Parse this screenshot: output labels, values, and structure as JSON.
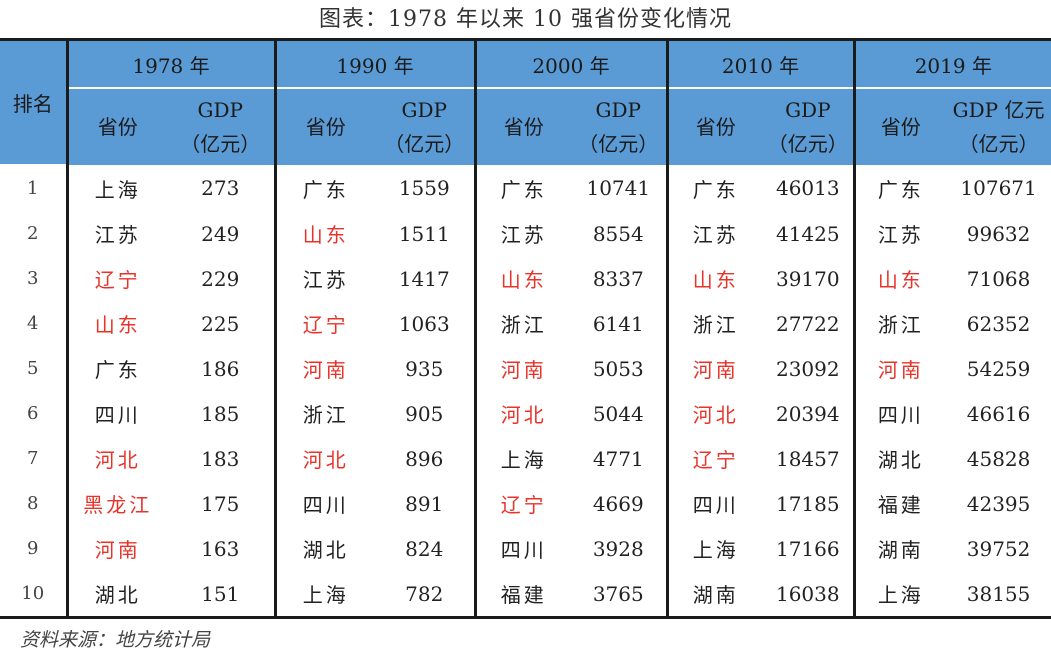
{
  "title": "图表：1978 年以来 10 强省份变化情况",
  "source": "资料来源：地方统计局",
  "header": {
    "rank_label": "排名",
    "years": [
      "1978 年",
      "1990 年",
      "2000 年",
      "2010 年",
      "2019 年"
    ],
    "province_label": "省份",
    "gdp_labels": [
      {
        "line1": "GDP",
        "line2": "（亿元）"
      },
      {
        "line1": "GDP",
        "line2": "（亿元）"
      },
      {
        "line1": "GDP",
        "line2": "（亿元）"
      },
      {
        "line1": "GDP",
        "line2": "（亿元）"
      },
      {
        "line1": "GDP 亿元",
        "line2": "（亿元）"
      }
    ]
  },
  "highlight_color": "#e8332a",
  "rows": [
    {
      "rank": "1",
      "cells": [
        {
          "province": "上海",
          "gdp": "273",
          "red": false
        },
        {
          "province": "广东",
          "gdp": "1559",
          "red": false
        },
        {
          "province": "广东",
          "gdp": "10741",
          "red": false
        },
        {
          "province": "广东",
          "gdp": "46013",
          "red": false
        },
        {
          "province": "广东",
          "gdp": "107671",
          "red": false
        }
      ]
    },
    {
      "rank": "2",
      "cells": [
        {
          "province": "江苏",
          "gdp": "249",
          "red": false
        },
        {
          "province": "山东",
          "gdp": "1511",
          "red": true
        },
        {
          "province": "江苏",
          "gdp": "8554",
          "red": false
        },
        {
          "province": "江苏",
          "gdp": "41425",
          "red": false
        },
        {
          "province": "江苏",
          "gdp": "99632",
          "red": false
        }
      ]
    },
    {
      "rank": "3",
      "cells": [
        {
          "province": "辽宁",
          "gdp": "229",
          "red": true
        },
        {
          "province": "江苏",
          "gdp": "1417",
          "red": false
        },
        {
          "province": "山东",
          "gdp": "8337",
          "red": true
        },
        {
          "province": "山东",
          "gdp": "39170",
          "red": true
        },
        {
          "province": "山东",
          "gdp": "71068",
          "red": true
        }
      ]
    },
    {
      "rank": "4",
      "cells": [
        {
          "province": "山东",
          "gdp": "225",
          "red": true
        },
        {
          "province": "辽宁",
          "gdp": "1063",
          "red": true
        },
        {
          "province": "浙江",
          "gdp": "6141",
          "red": false
        },
        {
          "province": "浙江",
          "gdp": "27722",
          "red": false
        },
        {
          "province": "浙江",
          "gdp": "62352",
          "red": false
        }
      ]
    },
    {
      "rank": "5",
      "cells": [
        {
          "province": "广东",
          "gdp": "186",
          "red": false
        },
        {
          "province": "河南",
          "gdp": "935",
          "red": true
        },
        {
          "province": "河南",
          "gdp": "5053",
          "red": true
        },
        {
          "province": "河南",
          "gdp": "23092",
          "red": true
        },
        {
          "province": "河南",
          "gdp": "54259",
          "red": true
        }
      ]
    },
    {
      "rank": "6",
      "cells": [
        {
          "province": "四川",
          "gdp": "185",
          "red": false
        },
        {
          "province": "浙江",
          "gdp": "905",
          "red": false
        },
        {
          "province": "河北",
          "gdp": "5044",
          "red": true
        },
        {
          "province": "河北",
          "gdp": "20394",
          "red": true
        },
        {
          "province": "四川",
          "gdp": "46616",
          "red": false
        }
      ]
    },
    {
      "rank": "7",
      "cells": [
        {
          "province": "河北",
          "gdp": "183",
          "red": true
        },
        {
          "province": "河北",
          "gdp": "896",
          "red": true
        },
        {
          "province": "上海",
          "gdp": "4771",
          "red": false
        },
        {
          "province": "辽宁",
          "gdp": "18457",
          "red": true
        },
        {
          "province": "湖北",
          "gdp": "45828",
          "red": false
        }
      ]
    },
    {
      "rank": "8",
      "cells": [
        {
          "province": "黑龙江",
          "gdp": "175",
          "red": true
        },
        {
          "province": "四川",
          "gdp": "891",
          "red": false
        },
        {
          "province": "辽宁",
          "gdp": "4669",
          "red": true
        },
        {
          "province": "四川",
          "gdp": "17185",
          "red": false
        },
        {
          "province": "福建",
          "gdp": "42395",
          "red": false
        }
      ]
    },
    {
      "rank": "9",
      "cells": [
        {
          "province": "河南",
          "gdp": "163",
          "red": true
        },
        {
          "province": "湖北",
          "gdp": "824",
          "red": false
        },
        {
          "province": "四川",
          "gdp": "3928",
          "red": false
        },
        {
          "province": "上海",
          "gdp": "17166",
          "red": false
        },
        {
          "province": "湖南",
          "gdp": "39752",
          "red": false
        }
      ]
    },
    {
      "rank": "10",
      "cells": [
        {
          "province": "湖北",
          "gdp": "151",
          "red": false
        },
        {
          "province": "上海",
          "gdp": "782",
          "red": false
        },
        {
          "province": "福建",
          "gdp": "3765",
          "red": false
        },
        {
          "province": "湖南",
          "gdp": "16038",
          "red": false
        },
        {
          "province": "上海",
          "gdp": "38155",
          "red": false
        }
      ]
    }
  ]
}
